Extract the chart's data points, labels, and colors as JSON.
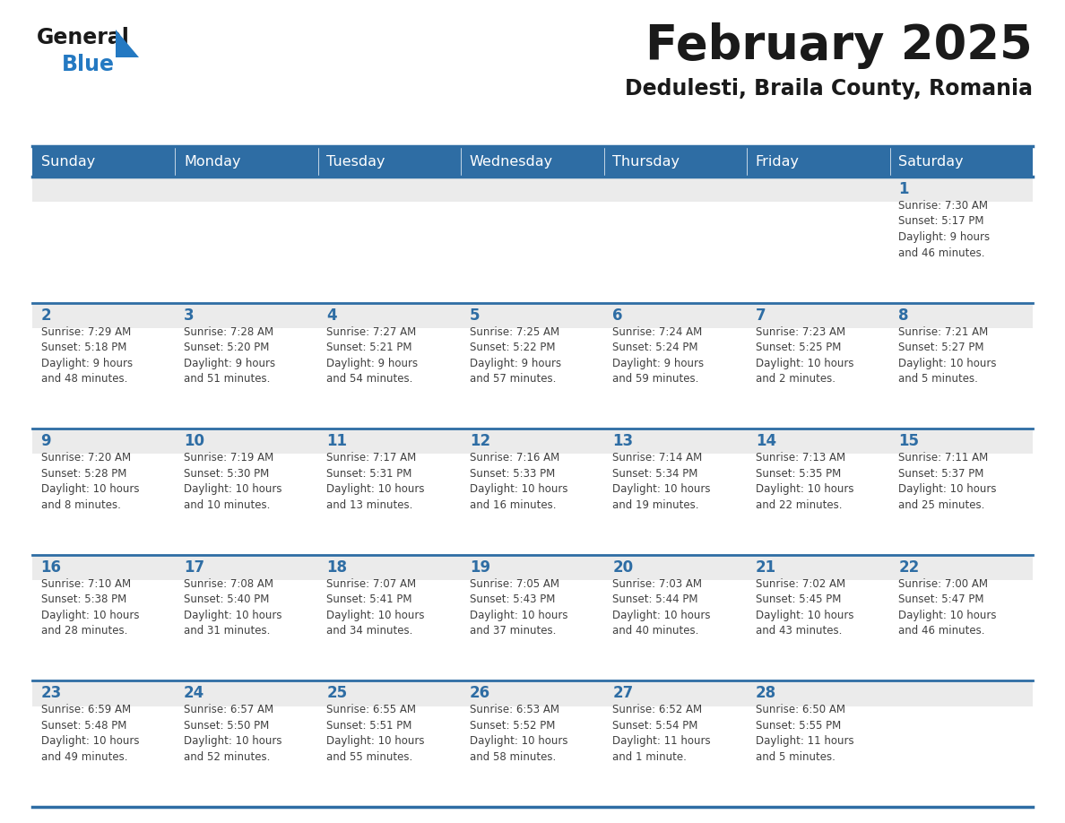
{
  "title": "February 2025",
  "subtitle": "Dedulesti, Braila County, Romania",
  "header_color": "#2E6DA4",
  "header_text_color": "#FFFFFF",
  "background_color": "#FFFFFF",
  "cell_bg_color": "#EBEBEB",
  "day_number_color": "#2E6DA4",
  "text_color": "#404040",
  "border_color": "#2E6DA4",
  "line_color": "#2E6DA4",
  "days_of_week": [
    "Sunday",
    "Monday",
    "Tuesday",
    "Wednesday",
    "Thursday",
    "Friday",
    "Saturday"
  ],
  "weeks": [
    [
      {
        "day": null,
        "info": null
      },
      {
        "day": null,
        "info": null
      },
      {
        "day": null,
        "info": null
      },
      {
        "day": null,
        "info": null
      },
      {
        "day": null,
        "info": null
      },
      {
        "day": null,
        "info": null
      },
      {
        "day": "1",
        "info": "Sunrise: 7:30 AM\nSunset: 5:17 PM\nDaylight: 9 hours\nand 46 minutes."
      }
    ],
    [
      {
        "day": "2",
        "info": "Sunrise: 7:29 AM\nSunset: 5:18 PM\nDaylight: 9 hours\nand 48 minutes."
      },
      {
        "day": "3",
        "info": "Sunrise: 7:28 AM\nSunset: 5:20 PM\nDaylight: 9 hours\nand 51 minutes."
      },
      {
        "day": "4",
        "info": "Sunrise: 7:27 AM\nSunset: 5:21 PM\nDaylight: 9 hours\nand 54 minutes."
      },
      {
        "day": "5",
        "info": "Sunrise: 7:25 AM\nSunset: 5:22 PM\nDaylight: 9 hours\nand 57 minutes."
      },
      {
        "day": "6",
        "info": "Sunrise: 7:24 AM\nSunset: 5:24 PM\nDaylight: 9 hours\nand 59 minutes."
      },
      {
        "day": "7",
        "info": "Sunrise: 7:23 AM\nSunset: 5:25 PM\nDaylight: 10 hours\nand 2 minutes."
      },
      {
        "day": "8",
        "info": "Sunrise: 7:21 AM\nSunset: 5:27 PM\nDaylight: 10 hours\nand 5 minutes."
      }
    ],
    [
      {
        "day": "9",
        "info": "Sunrise: 7:20 AM\nSunset: 5:28 PM\nDaylight: 10 hours\nand 8 minutes."
      },
      {
        "day": "10",
        "info": "Sunrise: 7:19 AM\nSunset: 5:30 PM\nDaylight: 10 hours\nand 10 minutes."
      },
      {
        "day": "11",
        "info": "Sunrise: 7:17 AM\nSunset: 5:31 PM\nDaylight: 10 hours\nand 13 minutes."
      },
      {
        "day": "12",
        "info": "Sunrise: 7:16 AM\nSunset: 5:33 PM\nDaylight: 10 hours\nand 16 minutes."
      },
      {
        "day": "13",
        "info": "Sunrise: 7:14 AM\nSunset: 5:34 PM\nDaylight: 10 hours\nand 19 minutes."
      },
      {
        "day": "14",
        "info": "Sunrise: 7:13 AM\nSunset: 5:35 PM\nDaylight: 10 hours\nand 22 minutes."
      },
      {
        "day": "15",
        "info": "Sunrise: 7:11 AM\nSunset: 5:37 PM\nDaylight: 10 hours\nand 25 minutes."
      }
    ],
    [
      {
        "day": "16",
        "info": "Sunrise: 7:10 AM\nSunset: 5:38 PM\nDaylight: 10 hours\nand 28 minutes."
      },
      {
        "day": "17",
        "info": "Sunrise: 7:08 AM\nSunset: 5:40 PM\nDaylight: 10 hours\nand 31 minutes."
      },
      {
        "day": "18",
        "info": "Sunrise: 7:07 AM\nSunset: 5:41 PM\nDaylight: 10 hours\nand 34 minutes."
      },
      {
        "day": "19",
        "info": "Sunrise: 7:05 AM\nSunset: 5:43 PM\nDaylight: 10 hours\nand 37 minutes."
      },
      {
        "day": "20",
        "info": "Sunrise: 7:03 AM\nSunset: 5:44 PM\nDaylight: 10 hours\nand 40 minutes."
      },
      {
        "day": "21",
        "info": "Sunrise: 7:02 AM\nSunset: 5:45 PM\nDaylight: 10 hours\nand 43 minutes."
      },
      {
        "day": "22",
        "info": "Sunrise: 7:00 AM\nSunset: 5:47 PM\nDaylight: 10 hours\nand 46 minutes."
      }
    ],
    [
      {
        "day": "23",
        "info": "Sunrise: 6:59 AM\nSunset: 5:48 PM\nDaylight: 10 hours\nand 49 minutes."
      },
      {
        "day": "24",
        "info": "Sunrise: 6:57 AM\nSunset: 5:50 PM\nDaylight: 10 hours\nand 52 minutes."
      },
      {
        "day": "25",
        "info": "Sunrise: 6:55 AM\nSunset: 5:51 PM\nDaylight: 10 hours\nand 55 minutes."
      },
      {
        "day": "26",
        "info": "Sunrise: 6:53 AM\nSunset: 5:52 PM\nDaylight: 10 hours\nand 58 minutes."
      },
      {
        "day": "27",
        "info": "Sunrise: 6:52 AM\nSunset: 5:54 PM\nDaylight: 11 hours\nand 1 minute."
      },
      {
        "day": "28",
        "info": "Sunrise: 6:50 AM\nSunset: 5:55 PM\nDaylight: 11 hours\nand 5 minutes."
      },
      {
        "day": null,
        "info": null
      }
    ]
  ],
  "logo_color_general": "#1a1a1a",
  "logo_color_blue": "#2479C2",
  "logo_triangle_color": "#2479C2",
  "fig_width": 11.88,
  "fig_height": 9.18,
  "dpi": 100
}
